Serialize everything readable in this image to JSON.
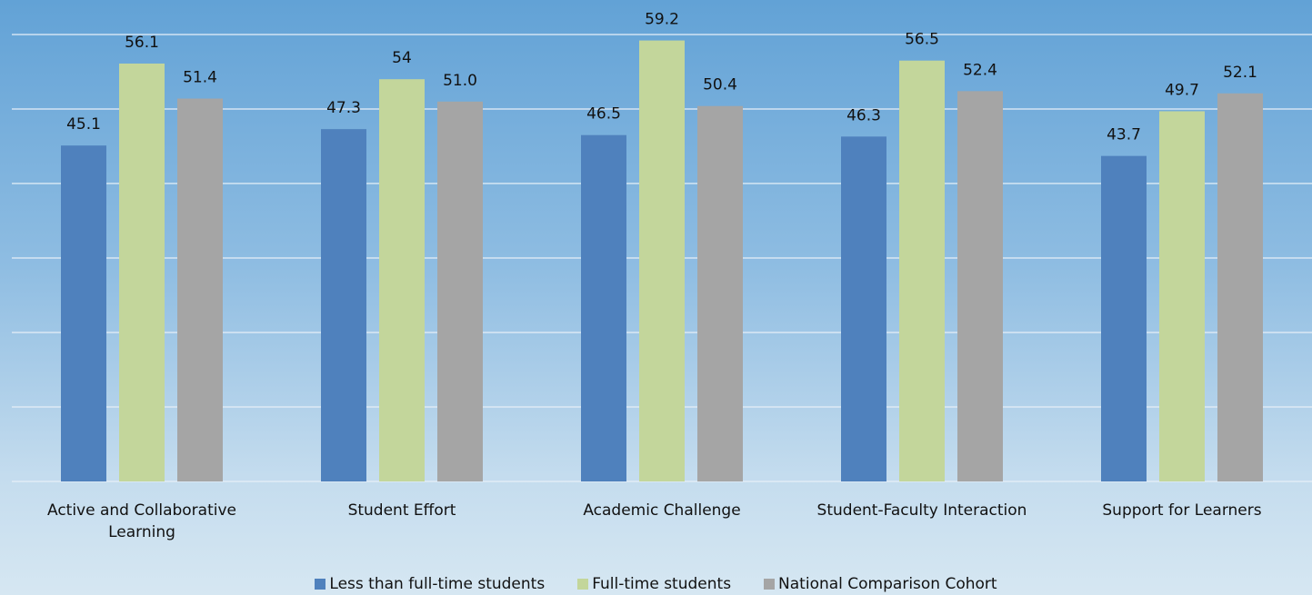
{
  "chart_data": {
    "type": "bar",
    "categories": [
      "Active and Collaborative Learning",
      "Student Effort",
      "Academic Challenge",
      "Student-Faculty Interaction",
      "Support for Learners"
    ],
    "series": [
      {
        "name": "Less than full-time students",
        "color": "#4f81bd",
        "values": [
          45.1,
          47.3,
          46.5,
          46.3,
          43.7
        ]
      },
      {
        "name": "Full-time students",
        "color": "#c3d69b",
        "values": [
          56.1,
          54,
          59.2,
          56.5,
          49.7
        ]
      },
      {
        "name": "National Comparison Cohort",
        "color": "#a5a5a5",
        "values": [
          51.4,
          51.0,
          50.4,
          52.4,
          52.1
        ],
        "value_labels": [
          "51.4",
          "51.0",
          "50.4",
          "52.4",
          "52.1"
        ]
      }
    ],
    "ylim": [
      0,
      60
    ],
    "yticks": [
      0,
      10,
      20,
      30,
      40,
      50,
      60
    ],
    "grid": true,
    "legend": "bottom"
  }
}
